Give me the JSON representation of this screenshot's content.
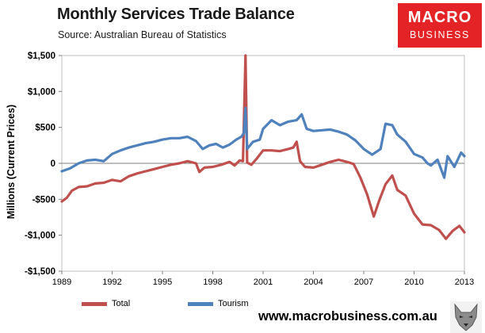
{
  "header": {
    "title": "Monthly Services Trade Balance",
    "source": "Source: Australian Bureau of Statistics"
  },
  "logo": {
    "line1": "MACRO",
    "line2": "BUSINESS"
  },
  "footer": {
    "website": "www.macrobusiness.com.au"
  },
  "colors": {
    "total": "#c0504d",
    "tourism": "#4f81bd",
    "logo_bg": "#e32325",
    "plot_bg": "#ffffff"
  },
  "icons": {
    "logo": "macro-business-logo",
    "mascot": "wolf-head-icon"
  },
  "chart_data": {
    "type": "line",
    "title": "Monthly Services Trade Balance",
    "xlabel": "",
    "ylabel": "Millions (Current Prices)",
    "xlim": [
      1989,
      2013
    ],
    "ylim": [
      -1500,
      1500
    ],
    "x_ticks": [
      "1989",
      "1992",
      "1995",
      "1998",
      "2001",
      "2004",
      "2007",
      "2010",
      "2013"
    ],
    "y_ticks": [
      "-$1,500",
      "-$1,000",
      "-$500",
      "0",
      "$500",
      "$1,000",
      "$1,500"
    ],
    "y_tick_values": [
      -1500,
      -1000,
      -500,
      0,
      500,
      1000,
      1500
    ],
    "grid": false,
    "legend_position": "bottom",
    "series": [
      {
        "name": "Total",
        "color": "#c0504d",
        "points": [
          [
            1989.0,
            -530
          ],
          [
            1989.3,
            -480
          ],
          [
            1989.6,
            -380
          ],
          [
            1990.0,
            -330
          ],
          [
            1990.5,
            -320
          ],
          [
            1991.0,
            -280
          ],
          [
            1991.5,
            -270
          ],
          [
            1992.0,
            -230
          ],
          [
            1992.5,
            -250
          ],
          [
            1993.0,
            -180
          ],
          [
            1993.5,
            -140
          ],
          [
            1994.0,
            -110
          ],
          [
            1994.5,
            -80
          ],
          [
            1995.0,
            -50
          ],
          [
            1995.5,
            -20
          ],
          [
            1996.0,
            0
          ],
          [
            1996.5,
            30
          ],
          [
            1997.0,
            0
          ],
          [
            1997.2,
            -120
          ],
          [
            1997.5,
            -60
          ],
          [
            1998.0,
            -50
          ],
          [
            1998.5,
            -20
          ],
          [
            1999.0,
            20
          ],
          [
            1999.3,
            -30
          ],
          [
            1999.6,
            40
          ],
          [
            1999.8,
            30
          ],
          [
            1999.95,
            1500
          ],
          [
            2000.05,
            10
          ],
          [
            2000.3,
            -20
          ],
          [
            2000.6,
            60
          ],
          [
            2001.0,
            180
          ],
          [
            2001.5,
            180
          ],
          [
            2002.0,
            170
          ],
          [
            2002.5,
            200
          ],
          [
            2002.8,
            220
          ],
          [
            2003.0,
            300
          ],
          [
            2003.2,
            30
          ],
          [
            2003.5,
            -50
          ],
          [
            2004.0,
            -60
          ],
          [
            2004.5,
            -20
          ],
          [
            2005.0,
            20
          ],
          [
            2005.5,
            50
          ],
          [
            2006.0,
            20
          ],
          [
            2006.4,
            -10
          ],
          [
            2006.8,
            -200
          ],
          [
            2007.2,
            -430
          ],
          [
            2007.6,
            -740
          ],
          [
            2007.9,
            -530
          ],
          [
            2008.3,
            -290
          ],
          [
            2008.7,
            -170
          ],
          [
            2009.0,
            -370
          ],
          [
            2009.5,
            -450
          ],
          [
            2010.0,
            -700
          ],
          [
            2010.5,
            -850
          ],
          [
            2011.0,
            -860
          ],
          [
            2011.5,
            -930
          ],
          [
            2011.9,
            -1050
          ],
          [
            2012.3,
            -940
          ],
          [
            2012.7,
            -870
          ],
          [
            2013.0,
            -960
          ]
        ]
      },
      {
        "name": "Tourism",
        "color": "#4f81bd",
        "points": [
          [
            1989.0,
            -110
          ],
          [
            1989.5,
            -70
          ],
          [
            1990.0,
            0
          ],
          [
            1990.5,
            40
          ],
          [
            1991.0,
            50
          ],
          [
            1991.5,
            30
          ],
          [
            1992.0,
            130
          ],
          [
            1992.5,
            180
          ],
          [
            1993.0,
            220
          ],
          [
            1993.5,
            250
          ],
          [
            1994.0,
            280
          ],
          [
            1994.5,
            300
          ],
          [
            1995.0,
            330
          ],
          [
            1995.5,
            350
          ],
          [
            1996.0,
            350
          ],
          [
            1996.5,
            370
          ],
          [
            1997.0,
            310
          ],
          [
            1997.4,
            200
          ],
          [
            1997.8,
            250
          ],
          [
            1998.2,
            270
          ],
          [
            1998.6,
            220
          ],
          [
            1999.0,
            260
          ],
          [
            1999.4,
            330
          ],
          [
            1999.7,
            370
          ],
          [
            1999.85,
            420
          ],
          [
            1999.95,
            770
          ],
          [
            2000.05,
            200
          ],
          [
            2000.4,
            300
          ],
          [
            2000.8,
            330
          ],
          [
            2001.0,
            480
          ],
          [
            2001.5,
            600
          ],
          [
            2002.0,
            530
          ],
          [
            2002.5,
            580
          ],
          [
            2003.0,
            600
          ],
          [
            2003.3,
            680
          ],
          [
            2003.6,
            480
          ],
          [
            2004.0,
            450
          ],
          [
            2004.5,
            460
          ],
          [
            2005.0,
            470
          ],
          [
            2005.5,
            440
          ],
          [
            2006.0,
            400
          ],
          [
            2006.5,
            320
          ],
          [
            2007.0,
            200
          ],
          [
            2007.5,
            120
          ],
          [
            2008.0,
            200
          ],
          [
            2008.3,
            550
          ],
          [
            2008.7,
            530
          ],
          [
            2009.0,
            400
          ],
          [
            2009.5,
            300
          ],
          [
            2010.0,
            130
          ],
          [
            2010.5,
            80
          ],
          [
            2010.8,
            0
          ],
          [
            2011.0,
            -30
          ],
          [
            2011.4,
            50
          ],
          [
            2011.8,
            -200
          ],
          [
            2012.0,
            100
          ],
          [
            2012.4,
            -50
          ],
          [
            2012.8,
            150
          ],
          [
            2013.0,
            100
          ]
        ]
      }
    ]
  }
}
